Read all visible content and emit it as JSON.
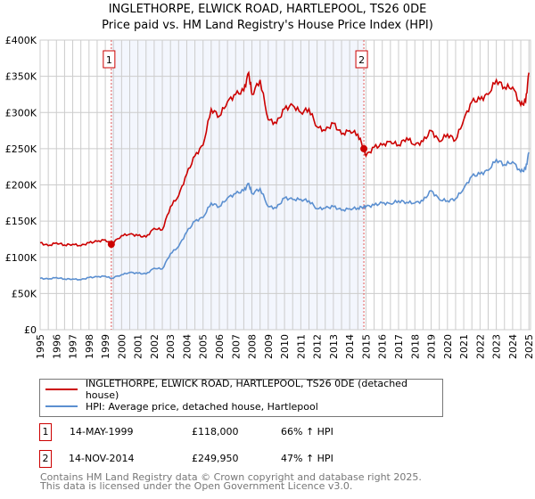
{
  "chart_data": {
    "type": "line",
    "title": "INGLETHORPE, ELWICK ROAD, HARTLEPOOL, TS26 0DE",
    "subtitle": "Price paid vs. HM Land Registry's House Price Index (HPI)",
    "xlim": [
      1995,
      2025.1
    ],
    "ylim": [
      0,
      400000
    ],
    "x_ticks": [
      "1995",
      "1996",
      "1997",
      "1998",
      "1999",
      "2000",
      "2001",
      "2002",
      "2003",
      "2004",
      "2005",
      "2006",
      "2007",
      "2008",
      "2009",
      "2010",
      "2011",
      "2012",
      "2013",
      "2014",
      "2015",
      "2016",
      "2017",
      "2018",
      "2019",
      "2020",
      "2021",
      "2022",
      "2023",
      "2024",
      "2025"
    ],
    "y_ticks": [
      {
        "v": 0,
        "label": "£0"
      },
      {
        "v": 50000,
        "label": "£50K"
      },
      {
        "v": 100000,
        "label": "£100K"
      },
      {
        "v": 150000,
        "label": "£150K"
      },
      {
        "v": 200000,
        "label": "£200K"
      },
      {
        "v": 250000,
        "label": "£250K"
      },
      {
        "v": 300000,
        "label": "£300K"
      },
      {
        "v": 350000,
        "label": "£350K"
      },
      {
        "v": 400000,
        "label": "£400K"
      }
    ],
    "grid": true,
    "shaded_range": [
      1999.37,
      2014.87
    ],
    "series": [
      {
        "name": "INGLETHORPE, ELWICK ROAD, HARTLEPOOL, TS26 0DE (detached house)",
        "color": "#cc0000",
        "x": [
          1995,
          1995.5,
          1996,
          1996.5,
          1997,
          1997.5,
          1998,
          1998.5,
          1999,
          1999.37,
          2000,
          2000.5,
          2001,
          2001.5,
          2002,
          2002.5,
          2003,
          2003.5,
          2004,
          2004.5,
          2005,
          2005.5,
          2006,
          2006.5,
          2007,
          2007.5,
          2007.8,
          2008,
          2008.5,
          2009,
          2009.5,
          2010,
          2010.5,
          2011,
          2011.5,
          2012,
          2012.5,
          2013,
          2013.5,
          2014,
          2014.5,
          2014.87,
          2015,
          2015.5,
          2016,
          2016.5,
          2017,
          2017.5,
          2018,
          2018.5,
          2019,
          2019.5,
          2020,
          2020.5,
          2021,
          2021.5,
          2022,
          2022.5,
          2023,
          2023.5,
          2024,
          2024.5,
          2024.8,
          2025
        ],
        "y": [
          120000,
          116000,
          120000,
          117000,
          118000,
          116000,
          120000,
          122000,
          124000,
          118000,
          130000,
          132000,
          130000,
          128000,
          140000,
          138000,
          170000,
          185000,
          215000,
          240000,
          255000,
          305000,
          295000,
          315000,
          325000,
          330000,
          355000,
          325000,
          345000,
          290000,
          285000,
          305000,
          310000,
          300000,
          305000,
          280000,
          275000,
          285000,
          270000,
          275000,
          270000,
          249950,
          240000,
          252000,
          255000,
          260000,
          255000,
          265000,
          255000,
          260000,
          275000,
          260000,
          270000,
          262000,
          290000,
          315000,
          318000,
          325000,
          345000,
          335000,
          335000,
          310000,
          315000,
          355000
        ]
      },
      {
        "name": "HPI: Average price, detached house, Hartlepool",
        "color": "#5b8fd0",
        "x": [
          1995,
          1995.5,
          1996,
          1996.5,
          1997,
          1997.5,
          1998,
          1998.5,
          1999,
          1999.37,
          2000,
          2000.5,
          2001,
          2001.5,
          2002,
          2002.5,
          2003,
          2003.5,
          2004,
          2004.5,
          2005,
          2005.5,
          2006,
          2006.5,
          2007,
          2007.5,
          2007.8,
          2008,
          2008.5,
          2009,
          2009.5,
          2010,
          2010.5,
          2011,
          2011.5,
          2012,
          2012.5,
          2013,
          2013.5,
          2014,
          2014.5,
          2014.87,
          2015,
          2015.5,
          2016,
          2016.5,
          2017,
          2017.5,
          2018,
          2018.5,
          2019,
          2019.5,
          2020,
          2020.5,
          2021,
          2021.5,
          2022,
          2022.5,
          2023,
          2023.5,
          2024,
          2024.5,
          2024.8,
          2025
        ],
        "y": [
          71000,
          70000,
          72000,
          70000,
          70000,
          69000,
          72000,
          73000,
          74000,
          71000,
          76000,
          79000,
          78000,
          77000,
          85000,
          84000,
          105000,
          115000,
          135000,
          150000,
          155000,
          175000,
          170000,
          182000,
          188000,
          192000,
          202000,
          188000,
          195000,
          170000,
          168000,
          182000,
          180000,
          180000,
          178000,
          167000,
          168000,
          170000,
          165000,
          167000,
          168000,
          170000,
          170000,
          172000,
          175000,
          174000,
          178000,
          176000,
          175000,
          178000,
          192000,
          180000,
          178000,
          181000,
          195000,
          212000,
          215000,
          220000,
          235000,
          228000,
          232000,
          218000,
          222000,
          245000
        ]
      }
    ],
    "annotations": [
      {
        "label": "1",
        "x": 1999.37,
        "y": 118000
      },
      {
        "label": "2",
        "x": 2014.87,
        "y": 249950
      }
    ]
  },
  "legend": {
    "items": [
      {
        "label": "INGLETHORPE, ELWICK ROAD, HARTLEPOOL, TS26 0DE (detached house)",
        "color": "#cc0000"
      },
      {
        "label": "HPI: Average price, detached house, Hartlepool",
        "color": "#5b8fd0"
      }
    ]
  },
  "transactions": [
    {
      "num": "1",
      "date": "14-MAY-1999",
      "price": "£118,000",
      "hpi": "66% ↑ HPI"
    },
    {
      "num": "2",
      "date": "14-NOV-2014",
      "price": "£249,950",
      "hpi": "47% ↑ HPI"
    }
  ],
  "footer": {
    "line1": "Contains HM Land Registry data © Crown copyright and database right 2025.",
    "line2": "This data is licensed under the Open Government Licence v3.0."
  }
}
